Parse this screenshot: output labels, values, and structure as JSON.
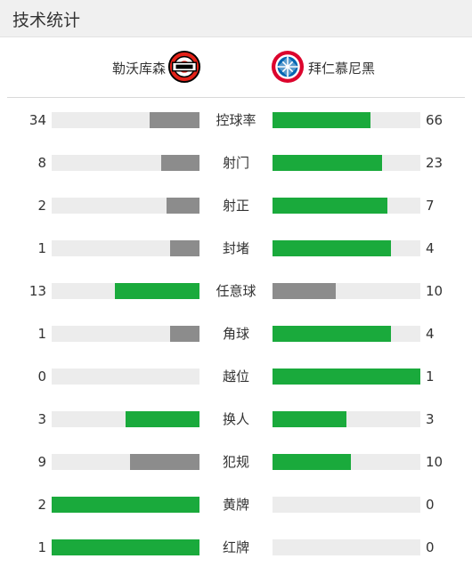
{
  "header": {
    "title": "技术统计"
  },
  "teams": {
    "home": {
      "name": "勒沃库森",
      "logo_icon": "bayer-leverkusen-crest"
    },
    "away": {
      "name": "拜仁慕尼黑",
      "logo_icon": "bayern-munich-crest"
    }
  },
  "colors": {
    "leading": "#1aaa3c",
    "trailing": "#8c8c8c",
    "track": "#ececec"
  },
  "stats": [
    {
      "label": "控球率",
      "home": "34",
      "away": "66",
      "home_fill": 0.34,
      "away_fill": 0.66
    },
    {
      "label": "射门",
      "home": "8",
      "away": "23",
      "home_fill": 0.26,
      "away_fill": 0.74
    },
    {
      "label": "射正",
      "home": "2",
      "away": "7",
      "home_fill": 0.22,
      "away_fill": 0.78
    },
    {
      "label": "封堵",
      "home": "1",
      "away": "4",
      "home_fill": 0.2,
      "away_fill": 0.8
    },
    {
      "label": "任意球",
      "home": "13",
      "away": "10",
      "home_fill": 0.57,
      "away_fill": 0.43
    },
    {
      "label": "角球",
      "home": "1",
      "away": "4",
      "home_fill": 0.2,
      "away_fill": 0.8
    },
    {
      "label": "越位",
      "home": "0",
      "away": "1",
      "home_fill": 0,
      "away_fill": 1
    },
    {
      "label": "换人",
      "home": "3",
      "away": "3",
      "home_fill": 0.5,
      "away_fill": 0.5
    },
    {
      "label": "犯规",
      "home": "9",
      "away": "10",
      "home_fill": 0.47,
      "away_fill": 0.53
    },
    {
      "label": "黄牌",
      "home": "2",
      "away": "0",
      "home_fill": 1,
      "away_fill": 0
    },
    {
      "label": "红牌",
      "home": "1",
      "away": "0",
      "home_fill": 1,
      "away_fill": 0
    }
  ]
}
